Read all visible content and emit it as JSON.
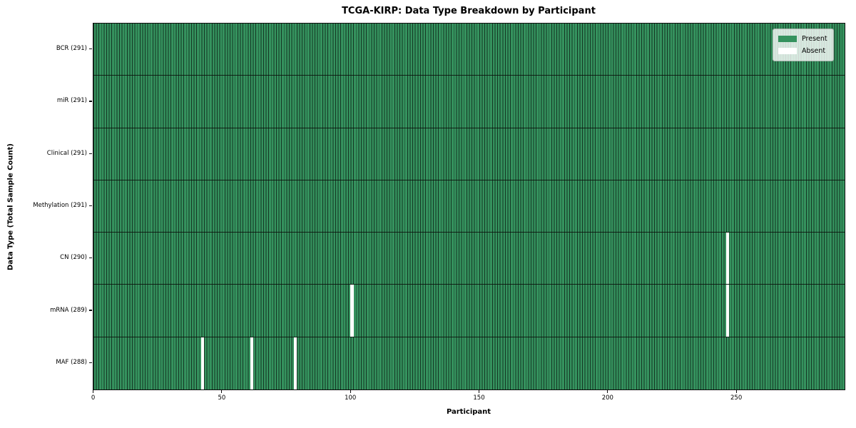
{
  "chart_data": {
    "type": "heatmap",
    "title": "TCGA-KIRP: Data Type Breakdown by Participant",
    "xlabel": "Participant",
    "ylabel": "Data Type (Total Sample Count)",
    "n_participants": 291,
    "x_axis_max": 292,
    "x_ticks": [
      0,
      50,
      100,
      150,
      200,
      250
    ],
    "legend_position": "upper right",
    "grid": false,
    "colors": {
      "present": "#35925e",
      "present_edge": "#0f261a",
      "absent": "#ffffff",
      "axis": "#0d0d0d",
      "background": "#ffffff"
    },
    "rows": [
      {
        "name": "BCR",
        "label": "BCR (291)",
        "present_count": 291,
        "absent_participants": []
      },
      {
        "name": "miR",
        "label": "miR (291)",
        "present_count": 291,
        "absent_participants": []
      },
      {
        "name": "Clinical",
        "label": "Clinical (291)",
        "present_count": 291,
        "absent_participants": []
      },
      {
        "name": "Methylation",
        "label": "Methylation (291)",
        "present_count": 291,
        "absent_participants": []
      },
      {
        "name": "CN",
        "label": "CN (290)",
        "present_count": 290,
        "absent_participants": [
          246
        ]
      },
      {
        "name": "mRNA",
        "label": "mRNA (289)",
        "present_count": 289,
        "absent_participants": [
          100,
          246
        ]
      },
      {
        "name": "MAF",
        "label": "MAF (288)",
        "present_count": 288,
        "absent_participants": [
          42,
          61,
          78
        ]
      }
    ],
    "legend": [
      {
        "label": "Present",
        "color": "#35925e"
      },
      {
        "label": "Absent",
        "color": "#ffffff"
      }
    ]
  }
}
